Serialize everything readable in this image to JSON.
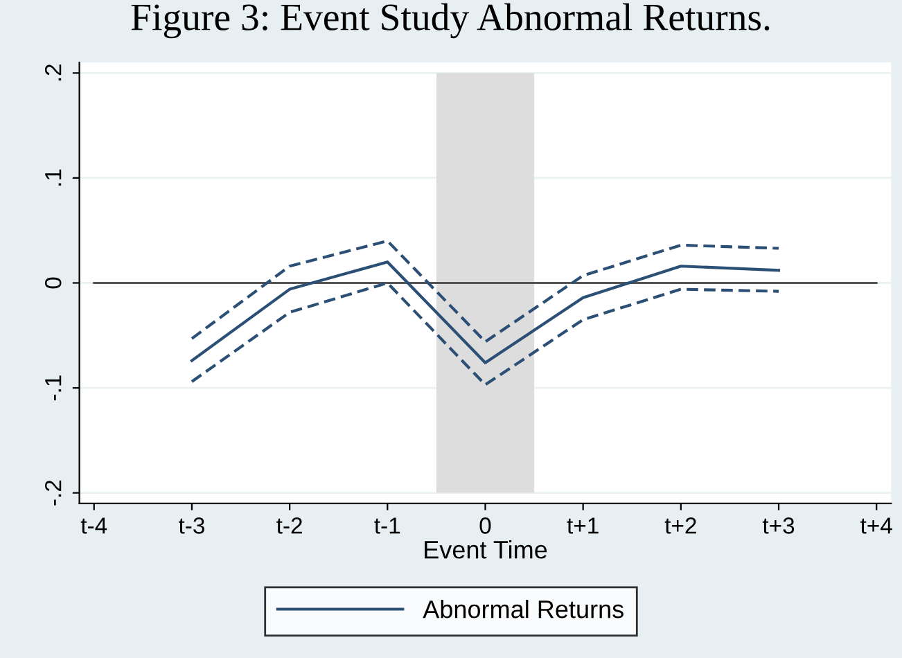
{
  "chart_data": {
    "type": "line",
    "title": "Figure 3: Event Study Abnormal Returns.",
    "xlabel": "Event Time",
    "categories": [
      "t-4",
      "t-3",
      "t-2",
      "t-1",
      "0",
      "t+1",
      "t+2",
      "t+3",
      "t+4"
    ],
    "series": [
      {
        "name": "Abnormal Returns",
        "color": "#2c5075",
        "values": [
          null,
          -0.074,
          -0.006,
          0.02,
          -0.076,
          -0.014,
          0.016,
          0.012,
          null
        ],
        "line_style": "solid"
      },
      {
        "color": "#2c5075",
        "values": [
          null,
          -0.053,
          0.016,
          0.04,
          -0.056,
          0.007,
          0.036,
          0.033,
          null
        ],
        "line_style": "dashed"
      },
      {
        "color": "#2c5075",
        "values": [
          null,
          -0.094,
          -0.028,
          0.0,
          -0.097,
          -0.035,
          -0.006,
          -0.008,
          null
        ],
        "line_style": "dashed"
      }
    ],
    "ylim": [
      -0.21,
      0.21
    ],
    "yticks": [
      {
        "value": -0.2,
        "label": "-.2"
      },
      {
        "value": -0.1,
        "label": "-.1"
      },
      0,
      {
        "value": 0.1,
        "label": ".1"
      },
      {
        "value": 0.2,
        "label": ".2"
      }
    ],
    "ref_lines": [
      {
        "axis": "y",
        "value": 0,
        "color": "#555555"
      }
    ],
    "bands": [
      {
        "axis": "x",
        "from": "0",
        "to": "0",
        "color": "#dddddd"
      }
    ],
    "grid": "y",
    "legend": "bottom",
    "marker": "none"
  }
}
